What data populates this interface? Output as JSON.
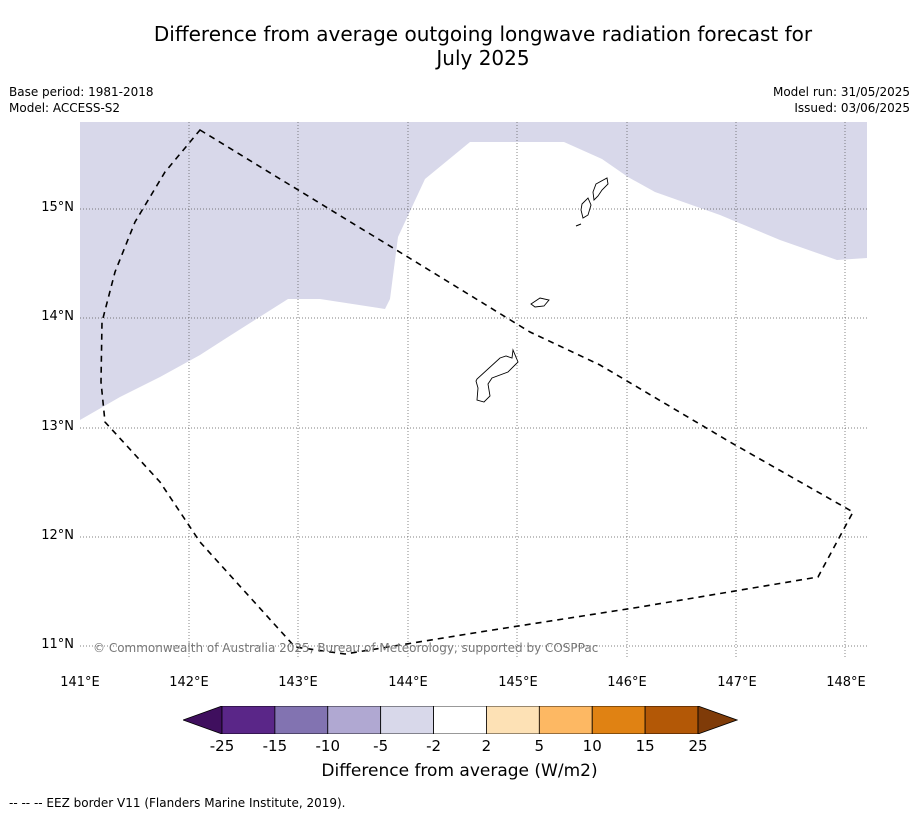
{
  "title_line1": "Difference from average outgoing longwave radiation forecast for",
  "title_line2": "July 2025",
  "base_period": "Base period: 1981-2018",
  "model": "Model: ACCESS-S2",
  "model_run": "Model run: 31/05/2025",
  "issued": "Issued: 03/06/2025",
  "lon_labels": [
    "141°E",
    "142°E",
    "143°E",
    "144°E",
    "145°E",
    "146°E",
    "147°E",
    "148°E"
  ],
  "lat_labels": [
    "15°N",
    "14°N",
    "13°N",
    "12°N",
    "11°N"
  ],
  "copyright": "© Commonwealth of Australia 2025, Bureau of Meteorology, supported by COSPPac",
  "colorbar": {
    "ticks": [
      "-25",
      "-15",
      "-10",
      "-5",
      "-2",
      "2",
      "5",
      "10",
      "15",
      "25"
    ],
    "colors": {
      "below": "#3f0f5e",
      "bins": [
        "#5a2688",
        "#8273b1",
        "#b0a8d2",
        "#d8d8ea",
        "#ffffff",
        "#fde1b5",
        "#fdb863",
        "#e08213",
        "#b35806"
      ],
      "above": "#7f3b08"
    },
    "label": "Difference from average (W/m2)"
  },
  "footer": "--  --  -- EEZ border V11 (Flanders Marine Institute, 2019)."
}
